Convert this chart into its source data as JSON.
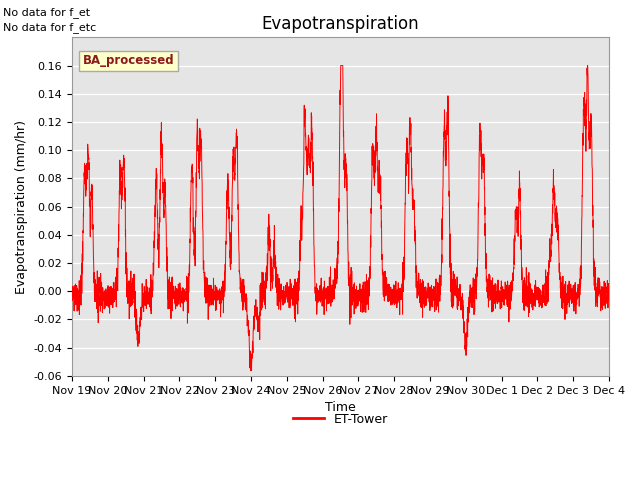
{
  "title": "Evapotranspiration",
  "ylabel": "Evapotranspiration (mm/hr)",
  "xlabel": "Time",
  "annotation_line1": "No data for f_et",
  "annotation_line2": "No data for f_etc",
  "box_label": "BA_processed",
  "legend_label": "ET-Tower",
  "legend_color": "#ff0000",
  "line_color": "#ff0000",
  "background_color": "#e5e5e5",
  "ylim": [
    -0.06,
    0.18
  ],
  "yticks": [
    -0.06,
    -0.04,
    -0.02,
    0.0,
    0.02,
    0.04,
    0.06,
    0.08,
    0.1,
    0.12,
    0.14,
    0.16
  ],
  "date_labels": [
    "Nov 19",
    "Nov 20",
    "Nov 21",
    "Nov 22",
    "Nov 23",
    "Nov 24",
    "Nov 25",
    "Nov 26",
    "Nov 27",
    "Nov 28",
    "Nov 29",
    "Nov 30",
    "Dec 1",
    "Dec 2",
    "Dec 3",
    "Dec 4"
  ],
  "n_points": 3360,
  "title_fontsize": 12,
  "label_fontsize": 9,
  "tick_fontsize": 8,
  "figwidth": 6.4,
  "figheight": 4.8,
  "dpi": 100
}
